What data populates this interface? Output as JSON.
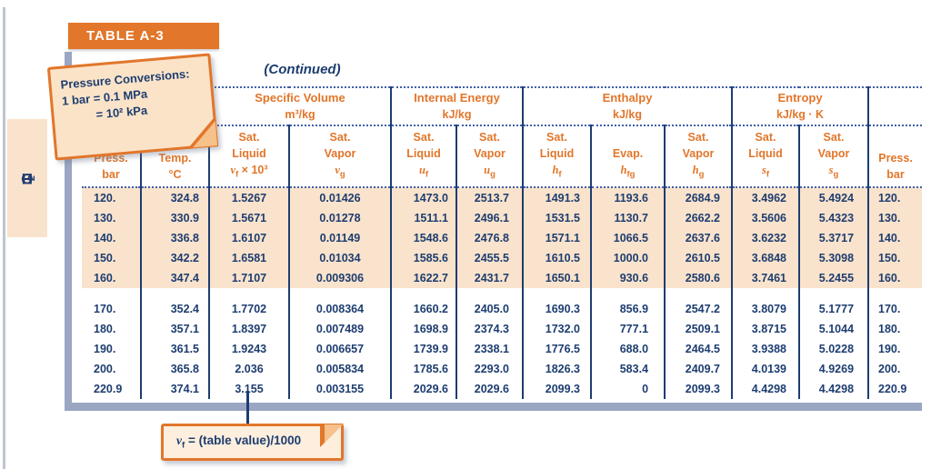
{
  "banner": {
    "title": "TABLE A-3"
  },
  "continued_label": "(Continued)",
  "substance_tab": {
    "pre": "H",
    "sub": "2",
    "post": "O"
  },
  "pressure_note": {
    "line1": "Pressure Conversions:",
    "line2": "1 bar = 0.1 MPa",
    "line3": "= 10² kPa"
  },
  "footnote": {
    "sym": "v",
    "sub": "f",
    "rest": "= (table value)/1000"
  },
  "colors": {
    "accent_orange": "#e2762a",
    "navy_text": "#1d3d70",
    "row_shading": "#fae3cc",
    "frame_gray_blue": "#9aa6c2",
    "dotted_rule_blue": "#3f5fa8",
    "note_background": "#fbe3c8"
  },
  "table": {
    "groups": [
      {
        "title": "Specific Volume",
        "unit": "m³/kg"
      },
      {
        "title": "Internal Energy",
        "unit": "kJ/kg"
      },
      {
        "title": "Enthalpy",
        "unit": "kJ/kg"
      },
      {
        "title": "Entropy",
        "unit": "kJ/kg · K"
      }
    ],
    "columns": [
      {
        "l1": "Press.",
        "l2": "bar"
      },
      {
        "l1": "Temp.",
        "l2": "°C"
      },
      {
        "l1": "Sat.",
        "l2": "Liquid",
        "sym": "v",
        "sub": "f",
        "tail": " × 10³"
      },
      {
        "l1": "Sat.",
        "l2": "Vapor",
        "sym": "v",
        "sub": "g",
        "tail": ""
      },
      {
        "l1": "Sat.",
        "l2": "Liquid",
        "sym": "u",
        "sub": "f",
        "tail": ""
      },
      {
        "l1": "Sat.",
        "l2": "Vapor",
        "sym": "u",
        "sub": "g",
        "tail": ""
      },
      {
        "l1": "Sat.",
        "l2": "Liquid",
        "sym": "h",
        "sub": "f",
        "tail": ""
      },
      {
        "l1": "",
        "l2": "Evap.",
        "sym": "h",
        "sub": "fg",
        "tail": ""
      },
      {
        "l1": "Sat.",
        "l2": "Vapor",
        "sym": "h",
        "sub": "g",
        "tail": ""
      },
      {
        "l1": "Sat.",
        "l2": "Liquid",
        "sym": "s",
        "sub": "f",
        "tail": ""
      },
      {
        "l1": "Sat.",
        "l2": "Vapor",
        "sym": "s",
        "sub": "g",
        "tail": ""
      },
      {
        "l1": "Press.",
        "l2": "bar"
      }
    ],
    "rows_120_160": [
      [
        "120.",
        "324.8",
        "1.5267",
        "0.01426",
        "1473.0",
        "2513.7",
        "1491.3",
        "1193.6",
        "2684.9",
        "3.4962",
        "5.4924",
        "120."
      ],
      [
        "130.",
        "330.9",
        "1.5671",
        "0.01278",
        "1511.1",
        "2496.1",
        "1531.5",
        "1130.7",
        "2662.2",
        "3.5606",
        "5.4323",
        "130."
      ],
      [
        "140.",
        "336.8",
        "1.6107",
        "0.01149",
        "1548.6",
        "2476.8",
        "1571.1",
        "1066.5",
        "2637.6",
        "3.6232",
        "5.3717",
        "140."
      ],
      [
        "150.",
        "342.2",
        "1.6581",
        "0.01034",
        "1585.6",
        "2455.5",
        "1610.5",
        "1000.0",
        "2610.5",
        "3.6848",
        "5.3098",
        "150."
      ],
      [
        "160.",
        "347.4",
        "1.7107",
        "0.009306",
        "1622.7",
        "2431.7",
        "1650.1",
        "930.6",
        "2580.6",
        "3.7461",
        "5.2455",
        "160."
      ]
    ],
    "rows_170_2209": [
      [
        "170.",
        "352.4",
        "1.7702",
        "0.008364",
        "1660.2",
        "2405.0",
        "1690.3",
        "856.9",
        "2547.2",
        "3.8079",
        "5.1777",
        "170."
      ],
      [
        "180.",
        "357.1",
        "1.8397",
        "0.007489",
        "1698.9",
        "2374.3",
        "1732.0",
        "777.1",
        "2509.1",
        "3.8715",
        "5.1044",
        "180."
      ],
      [
        "190.",
        "361.5",
        "1.9243",
        "0.006657",
        "1739.9",
        "2338.1",
        "1776.5",
        "688.0",
        "2464.5",
        "3.9388",
        "5.0228",
        "190."
      ],
      [
        "200.",
        "365.8",
        "2.036",
        "0.005834",
        "1785.6",
        "2293.0",
        "1826.3",
        "583.4",
        "2409.7",
        "4.0139",
        "4.9269",
        "200."
      ],
      [
        "220.9",
        "374.1",
        "3.155",
        "0.003155",
        "2029.6",
        "2029.6",
        "2099.3",
        "0",
        "2099.3",
        "4.4298",
        "4.4298",
        "220.9"
      ]
    ]
  }
}
